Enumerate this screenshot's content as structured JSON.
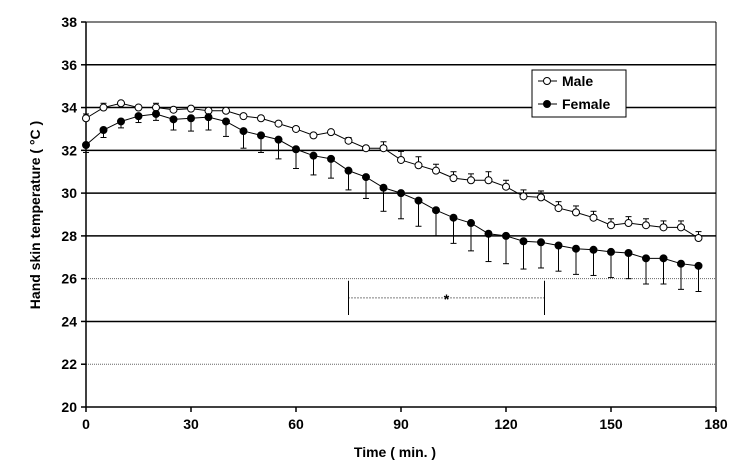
{
  "chart_data": {
    "type": "line",
    "title": "",
    "xlabel": "Time ( min. )",
    "ylabel": "Hand skin temperature ( °C )",
    "xlim": [
      0,
      180
    ],
    "ylim": [
      20,
      38
    ],
    "x_ticks": [
      0,
      30,
      60,
      90,
      120,
      150,
      180
    ],
    "y_ticks": [
      20,
      22,
      24,
      26,
      28,
      30,
      32,
      34,
      36,
      38
    ],
    "x_tick_labels": [
      "0",
      "30",
      "60",
      "90",
      "120",
      "150",
      "180"
    ],
    "y_tick_labels": [
      "20",
      "22",
      "24",
      "26",
      "28",
      "30",
      "32",
      "34",
      "36",
      "38"
    ],
    "legend_position": "top-right",
    "grid": true,
    "x": [
      0,
      5,
      10,
      15,
      20,
      25,
      30,
      35,
      40,
      45,
      50,
      55,
      60,
      65,
      70,
      75,
      80,
      85,
      90,
      95,
      100,
      105,
      110,
      115,
      120,
      125,
      130,
      135,
      140,
      145,
      150,
      155,
      160,
      165,
      170,
      175
    ],
    "series": [
      {
        "name": "Male",
        "marker": "open-circle",
        "color": "#000000",
        "values": [
          33.5,
          34.0,
          34.2,
          34.0,
          34.0,
          33.9,
          33.95,
          33.85,
          33.85,
          33.6,
          33.5,
          33.25,
          33.0,
          32.7,
          32.85,
          32.45,
          32.1,
          32.1,
          31.55,
          31.3,
          31.05,
          30.7,
          30.6,
          30.6,
          30.3,
          29.85,
          29.8,
          29.3,
          29.1,
          28.85,
          28.5,
          28.6,
          28.5,
          28.4,
          28.4,
          27.9
        ],
        "error": [
          0.2,
          0.2,
          0.1,
          0.1,
          0.2,
          0.1,
          0.1,
          0.15,
          0.15,
          0.1,
          0.1,
          0.1,
          0.1,
          0.1,
          0.1,
          0.15,
          0.1,
          0.3,
          0.4,
          0.4,
          0.3,
          0.3,
          0.3,
          0.4,
          0.3,
          0.3,
          0.3,
          0.3,
          0.3,
          0.3,
          0.3,
          0.3,
          0.3,
          0.3,
          0.3,
          0.3
        ]
      },
      {
        "name": "Female",
        "marker": "filled-circle",
        "color": "#000000",
        "values": [
          32.25,
          32.95,
          33.35,
          33.6,
          33.7,
          33.45,
          33.5,
          33.55,
          33.35,
          32.9,
          32.7,
          32.5,
          32.05,
          31.75,
          31.6,
          31.05,
          30.75,
          30.25,
          30.0,
          29.65,
          29.2,
          28.85,
          28.6,
          28.1,
          28.0,
          27.75,
          27.7,
          27.55,
          27.4,
          27.35,
          27.25,
          27.2,
          26.95,
          26.95,
          26.7,
          26.6
        ],
        "error": [
          0.35,
          0.35,
          0.3,
          0.3,
          0.3,
          0.5,
          0.6,
          0.6,
          0.7,
          0.8,
          0.8,
          0.9,
          0.9,
          0.9,
          0.9,
          0.9,
          1.0,
          1.1,
          1.2,
          1.2,
          1.2,
          1.2,
          1.3,
          1.3,
          1.3,
          1.3,
          1.2,
          1.2,
          1.2,
          1.2,
          1.2,
          1.2,
          1.2,
          1.2,
          1.2,
          1.2
        ]
      }
    ],
    "annotation": {
      "text": "*",
      "x_start": 75,
      "x_end": 131,
      "y": 25.1,
      "y_low": 24.3,
      "y_high": 25.9
    }
  }
}
